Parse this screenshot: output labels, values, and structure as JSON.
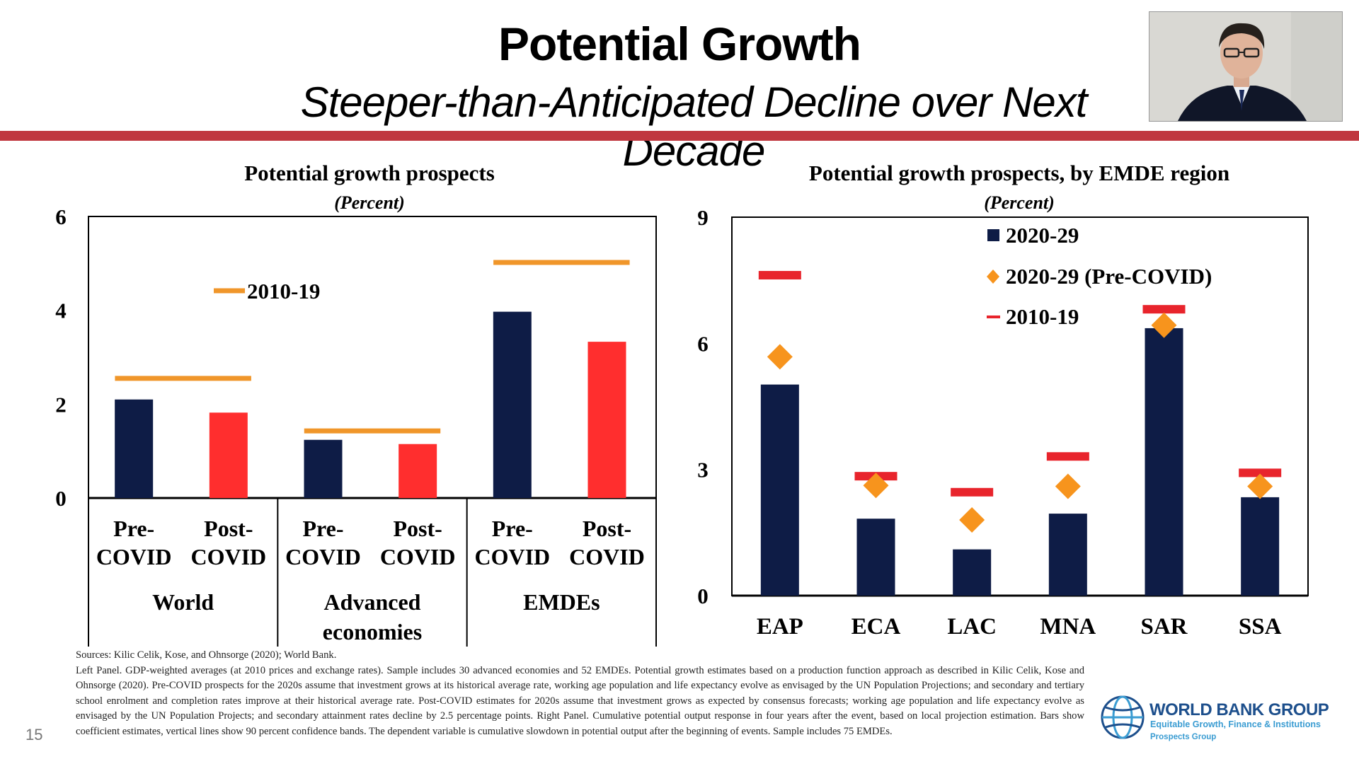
{
  "slide": {
    "title": "Potential Growth",
    "subtitle": "Steeper-than-Anticipated Decline over Next Decade",
    "number": "15",
    "accent_color": "#c0373f"
  },
  "footnote": {
    "sources": "Sources: Kilic Celik, Kose, and Ohnsorge (2020); World Bank.",
    "text": "Left Panel. GDP-weighted averages (at 2010 prices and exchange rates). Sample includes 30 advanced economies and 52 EMDEs. Potential growth estimates based on a production function approach as described in Kilic Celik, Kose and Ohnsorge (2020). Pre-COVID prospects for the 2020s assume that investment grows at its historical average rate, working age population and life expectancy evolve as envisaged by the UN Population Projections; and secondary and tertiary school enrolment and completion rates improve at their historical average rate. Post-COVID estimates for 2020s assume that investment grows as expected by consensus forecasts; working age population and life expectancy evolve as envisaged by the UN Population Projects; and secondary attainment rates decline by 2.5 percentage points. Right Panel. Cumulative potential output response in four years after the event, based on local projection estimation. Bars show coefficient estimates, vertical lines show 90 percent confidence bands. The dependent variable is cumulative slowdown in potential output after the beginning of events. Sample includes 75 EMDEs."
  },
  "logo": {
    "name": "WORLD BANK GROUP",
    "tagline": "Equitable Growth, Finance & Institutions",
    "group": "Prospects Group",
    "icon": "globe-icon"
  },
  "webcam": {
    "icon": "presenter-video-icon"
  },
  "colors": {
    "navy": "#0e1c46",
    "red": "#ff2e2e",
    "orange": "#f0962a",
    "line_red": "#e8242c",
    "diamond_orange": "#f7941d"
  },
  "chart_data": [
    {
      "type": "bar",
      "title": "Potential growth prospects",
      "subtitle": "(Percent)",
      "ylim": [
        0,
        6
      ],
      "yticks": [
        "0",
        "2",
        "4",
        "6"
      ],
      "groups": [
        {
          "name": "World",
          "name_lines": [
            "World"
          ],
          "pre": 2.1,
          "post": 1.82,
          "line_2010_19": 2.55
        },
        {
          "name": "Advanced economies",
          "name_lines": [
            "Advanced",
            "economies"
          ],
          "pre": 1.24,
          "post": 1.15,
          "line_2010_19": 1.43
        },
        {
          "name": "EMDEs",
          "name_lines": [
            "EMDEs"
          ],
          "pre": 3.97,
          "post": 3.33,
          "line_2010_19": 5.02
        }
      ],
      "bar_labels": {
        "pre": [
          "Pre-",
          "COVID"
        ],
        "post": [
          "Post-",
          "COVID"
        ]
      },
      "legend": [
        {
          "label": "2010-19",
          "marker": "line",
          "color": "#f0962a"
        }
      ],
      "legend_position": "upper-left"
    },
    {
      "type": "bar",
      "title": "Potential growth prospects, by EMDE region",
      "subtitle": "(Percent)",
      "ylim": [
        0,
        9
      ],
      "yticks": [
        "0",
        "3",
        "6",
        "9"
      ],
      "categories": [
        "EAP",
        "ECA",
        "LAC",
        "MNA",
        "SAR",
        "SSA"
      ],
      "series": [
        {
          "name": "2020-29",
          "marker": "bar",
          "values": [
            5.02,
            1.83,
            1.1,
            1.95,
            6.36,
            2.34
          ]
        },
        {
          "name": "2020-29 (Pre-COVID)",
          "marker": "diamond",
          "values": [
            5.68,
            2.62,
            1.8,
            2.6,
            6.43,
            2.6
          ]
        },
        {
          "name": "2010-19",
          "marker": "line",
          "values": [
            7.62,
            2.84,
            2.46,
            3.31,
            6.81,
            2.92
          ]
        }
      ],
      "legend_position": "top-right"
    }
  ]
}
